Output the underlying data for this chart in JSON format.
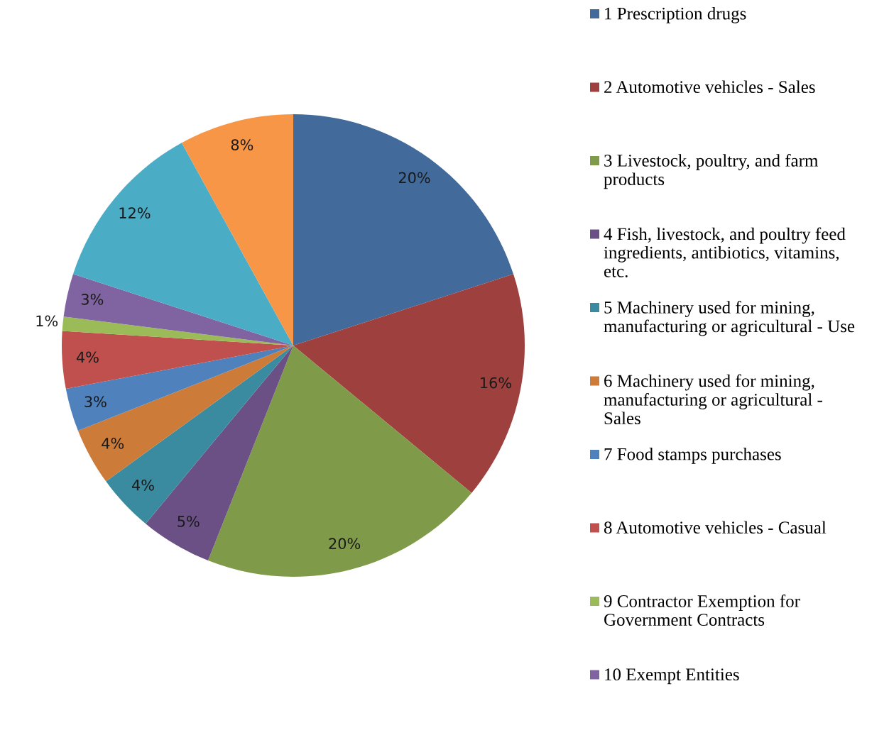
{
  "chart_data": {
    "type": "pie",
    "categories": [
      "1 Prescription drugs",
      "2 Automotive vehicles - Sales",
      "3 Livestock, poultry, and farm\nproducts",
      "4 Fish, livestock, and poultry feed\ningredients, antibiotics, vitamins,\netc.",
      "5 Machinery used for mining,\nmanufacturing or agricultural - Use",
      "6 Machinery used for mining,\nmanufacturing or agricultural -\nSales",
      "7 Food stamps purchases",
      "8 Automotive vehicles - Casual",
      "9 Contractor Exemption for\nGovernment Contracts",
      "10 Exempt Entities",
      null,
      null
    ],
    "values": [
      20,
      16,
      20,
      5,
      4,
      4,
      3,
      4,
      1,
      3,
      12,
      8
    ],
    "colors": [
      "#426a9a",
      "#9e403d",
      "#7f9a48",
      "#6a5084",
      "#3b8ba0",
      "#cc7b38",
      "#4f81bd",
      "#c0504d",
      "#9bbb59",
      "#8064a2",
      "#4bacc6",
      "#f79646"
    ],
    "value_labels": [
      "20%",
      "16%",
      "20%",
      "5%",
      "4%",
      "4%",
      "3%",
      "4%",
      "1%",
      "3%",
      "12%",
      "8%"
    ],
    "legend": "right"
  }
}
